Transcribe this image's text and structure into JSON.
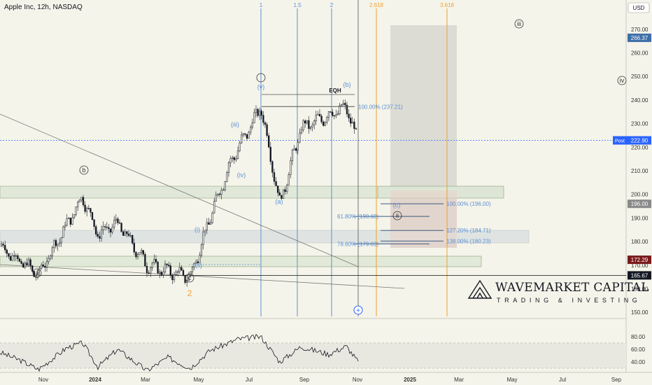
{
  "symbol_title": "Apple Inc, 12h, NASDAQ",
  "currency": "USD",
  "brand": {
    "name": "WAVEMARKET CAPITAL",
    "tagline": "TRADING & INVESTING"
  },
  "colors": {
    "background": "#f5f4ea",
    "candle": "#131722",
    "blue": "#5b8fd6",
    "orange": "#f0a030",
    "zone": "#d6e2d0",
    "post": "#2962ff",
    "red": "#7a1a1a"
  },
  "chart_data": {
    "type": "candlestick",
    "price_axis": {
      "ticks": [
        150,
        160,
        170,
        180,
        190,
        200,
        210,
        220,
        230,
        240,
        250,
        260,
        270
      ],
      "ylim": [
        145,
        276
      ]
    },
    "time_axis": {
      "labels": [
        "Nov",
        "2024",
        "Mar",
        "May",
        "Jul",
        "Sep",
        "Nov",
        "2025",
        "Mar",
        "May",
        "Jul",
        "Sep"
      ]
    },
    "price_labels": [
      {
        "text": "266.37",
        "value": 266.37,
        "style": "blue"
      },
      {
        "text": "222.90",
        "value": 222.9,
        "style": "post",
        "tag": "Post"
      },
      {
        "text": "196.00",
        "value": 196.0,
        "style": "gray"
      },
      {
        "text": "172.29",
        "value": 172.29,
        "style": "red"
      },
      {
        "text": "165.67",
        "value": 165.67,
        "style": "black"
      }
    ],
    "price_anchors": [
      {
        "t": "Oct 2023",
        "v": 178
      },
      {
        "t": "Nov 2023 low",
        "v": 166
      },
      {
        "t": "Dec 2023",
        "v": 199
      },
      {
        "t": "Jan 2024",
        "v": 183
      },
      {
        "t": "Feb 2024",
        "v": 188
      },
      {
        "t": "Mar 2024",
        "v": 170
      },
      {
        "t": "Apr 2024 low",
        "v": 165
      },
      {
        "t": "May 2024",
        "v": 190
      },
      {
        "t": "Jun 2024",
        "v": 214
      },
      {
        "t": "Jul 2024 high",
        "v": 237
      },
      {
        "t": "Aug 2024 low",
        "v": 196
      },
      {
        "t": "Sep 2024",
        "v": 228
      },
      {
        "t": "Oct 2024 high",
        "v": 237
      },
      {
        "t": "Nov 2024",
        "v": 222
      }
    ],
    "wave_labels": [
      "1",
      "1.5",
      "2",
      "2.618",
      "3.618",
      "a",
      "b",
      "c",
      "2",
      "(i)",
      "(ii)",
      "(iii)",
      "(iv)",
      "(v)",
      "(a)",
      "(b)",
      "(c)",
      "ii",
      "iii",
      "iv",
      "EQH"
    ],
    "fib_retracement": [
      {
        "text": "100.00% (237.21)",
        "value": 237.21
      },
      {
        "text": "61.80% (190.68)",
        "value": 190.68
      },
      {
        "text": "78.60% (179.03)",
        "value": 179.03
      }
    ],
    "fib_extension": [
      {
        "text": "100.00% (196.00)",
        "value": 196.0
      },
      {
        "text": "127.20% (184.71)",
        "value": 184.71
      },
      {
        "text": "138.00% (180.23)",
        "value": 180.23
      }
    ],
    "rsi": {
      "ticks": [
        40,
        60,
        80
      ],
      "upper": 70,
      "lower": 30,
      "ylim": [
        23,
        86
      ]
    }
  }
}
